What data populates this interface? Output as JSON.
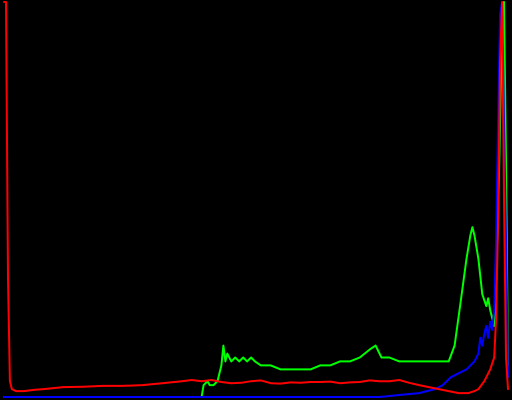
{
  "chart_data": {
    "type": "line",
    "title": "",
    "xlabel": "",
    "ylabel": "",
    "xlim": [
      0,
      255
    ],
    "ylim": [
      0,
      100
    ],
    "grid": false,
    "legend": "none",
    "background": "#000000",
    "series": [
      {
        "color": "#00ff00",
        "points": [
          [
            0,
            0
          ],
          [
            100,
            0
          ],
          [
            101,
            3
          ],
          [
            103,
            4
          ],
          [
            104,
            3
          ],
          [
            106,
            3
          ],
          [
            108,
            4
          ],
          [
            110,
            8
          ],
          [
            111,
            13
          ],
          [
            112,
            9
          ],
          [
            113,
            11
          ],
          [
            115,
            9
          ],
          [
            117,
            10
          ],
          [
            119,
            9
          ],
          [
            121,
            10
          ],
          [
            123,
            9
          ],
          [
            125,
            10
          ],
          [
            127,
            9
          ],
          [
            130,
            8
          ],
          [
            135,
            8
          ],
          [
            140,
            7
          ],
          [
            145,
            7
          ],
          [
            150,
            7
          ],
          [
            155,
            7
          ],
          [
            160,
            8
          ],
          [
            165,
            8
          ],
          [
            170,
            9
          ],
          [
            175,
            9
          ],
          [
            180,
            10
          ],
          [
            185,
            12
          ],
          [
            188,
            13
          ],
          [
            191,
            10
          ],
          [
            195,
            10
          ],
          [
            200,
            9
          ],
          [
            205,
            9
          ],
          [
            210,
            9
          ],
          [
            215,
            9
          ],
          [
            220,
            9
          ],
          [
            225,
            9
          ],
          [
            228,
            13
          ],
          [
            231,
            24
          ],
          [
            234,
            35
          ],
          [
            236,
            41
          ],
          [
            237,
            43
          ],
          [
            238,
            41
          ],
          [
            240,
            35
          ],
          [
            242,
            26
          ],
          [
            244,
            23
          ],
          [
            245,
            25
          ],
          [
            246,
            22
          ],
          [
            247,
            20
          ],
          [
            248,
            18
          ],
          [
            249,
            25
          ],
          [
            250,
            45
          ],
          [
            251,
            70
          ],
          [
            252,
            97
          ],
          [
            253,
            100
          ],
          [
            254,
            60
          ],
          [
            255,
            8
          ]
        ]
      },
      {
        "color": "#0000ff",
        "points": [
          [
            0,
            0
          ],
          [
            100,
            0
          ],
          [
            150,
            0
          ],
          [
            190,
            0
          ],
          [
            200,
            0.5
          ],
          [
            210,
            1
          ],
          [
            218,
            2
          ],
          [
            222,
            3
          ],
          [
            226,
            5
          ],
          [
            230,
            6
          ],
          [
            234,
            7
          ],
          [
            238,
            9
          ],
          [
            240,
            11
          ],
          [
            241,
            15
          ],
          [
            242,
            13
          ],
          [
            243,
            16
          ],
          [
            244,
            18
          ],
          [
            245,
            15
          ],
          [
            246,
            19
          ],
          [
            247,
            17
          ],
          [
            248,
            22
          ],
          [
            249,
            40
          ],
          [
            250,
            70
          ],
          [
            251,
            97
          ],
          [
            252,
            100
          ],
          [
            253,
            70
          ],
          [
            254,
            40
          ],
          [
            255,
            5
          ]
        ]
      },
      {
        "color": "#ff0000",
        "points": [
          [
            0,
            100
          ],
          [
            1,
            100
          ],
          [
            2,
            30
          ],
          [
            3,
            4
          ],
          [
            4,
            2
          ],
          [
            6,
            1.5
          ],
          [
            10,
            1.5
          ],
          [
            15,
            1.8
          ],
          [
            20,
            2
          ],
          [
            30,
            2.5
          ],
          [
            40,
            2.6
          ],
          [
            50,
            2.8
          ],
          [
            60,
            2.8
          ],
          [
            70,
            3
          ],
          [
            80,
            3.5
          ],
          [
            90,
            4
          ],
          [
            95,
            4.3
          ],
          [
            100,
            4
          ],
          [
            105,
            4.3
          ],
          [
            110,
            3.8
          ],
          [
            115,
            3.5
          ],
          [
            120,
            3.6
          ],
          [
            125,
            4
          ],
          [
            130,
            4.2
          ],
          [
            135,
            3.5
          ],
          [
            140,
            3.4
          ],
          [
            145,
            3.7
          ],
          [
            150,
            3.6
          ],
          [
            155,
            3.8
          ],
          [
            160,
            3.8
          ],
          [
            165,
            3.9
          ],
          [
            170,
            3.5
          ],
          [
            175,
            3.7
          ],
          [
            180,
            3.8
          ],
          [
            185,
            4.2
          ],
          [
            190,
            4
          ],
          [
            195,
            4
          ],
          [
            200,
            4.3
          ],
          [
            205,
            3.6
          ],
          [
            210,
            3
          ],
          [
            215,
            2.5
          ],
          [
            220,
            2
          ],
          [
            225,
            1.5
          ],
          [
            230,
            1
          ],
          [
            235,
            1
          ],
          [
            238,
            1.5
          ],
          [
            240,
            2
          ],
          [
            243,
            4
          ],
          [
            246,
            7
          ],
          [
            248,
            10
          ],
          [
            249,
            20
          ],
          [
            250,
            45
          ],
          [
            251,
            85
          ],
          [
            252,
            100
          ],
          [
            253,
            50
          ],
          [
            254,
            10
          ],
          [
            255,
            2
          ]
        ]
      }
    ]
  }
}
